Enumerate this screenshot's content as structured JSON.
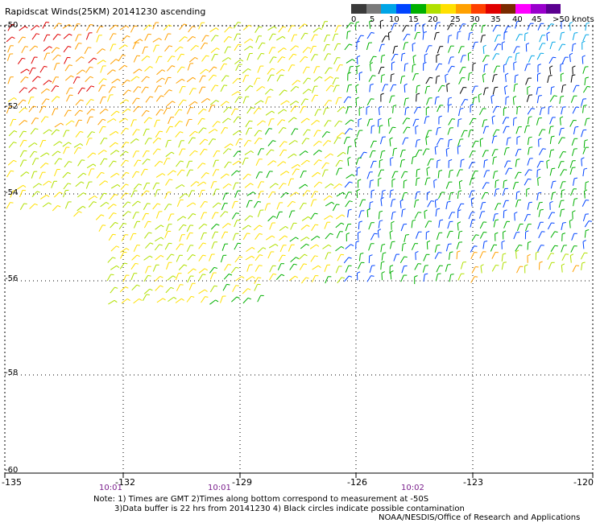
{
  "title": "Rapidscat Winds(25KM) 20141230 ascending",
  "legend": {
    "colors": [
      "#3a3a3a",
      "#7a7a7a",
      "#00a5e6",
      "#0044ff",
      "#00b000",
      "#b0e000",
      "#ffe000",
      "#ffa000",
      "#ff4000",
      "#e00000",
      "#7a2a00",
      "#ff00ff",
      "#9900cc",
      "#5a0090"
    ],
    "ticks": [
      "0",
      "5",
      "10",
      "15",
      "20",
      "25",
      "30",
      "35",
      "40",
      "45",
      ">50 knots"
    ]
  },
  "lat_labels": [
    "-50",
    "-52",
    "-54",
    "-56",
    "-58",
    "-60"
  ],
  "lon_labels": [
    "-135",
    "-132",
    "-129",
    "-126",
    "-123",
    "-120"
  ],
  "time_labels": [
    "10:01",
    "10:01",
    "10:02"
  ],
  "notes": {
    "line1": "Note: 1) Times are GMT 2)Times along bottom correspond to measurement at -50S",
    "line2": "3)Data buffer is 22 hrs from 20141230 4) Black circles indicate possible contamination",
    "credit": "NOAA/NESDIS/Office of Research and Applications"
  }
}
